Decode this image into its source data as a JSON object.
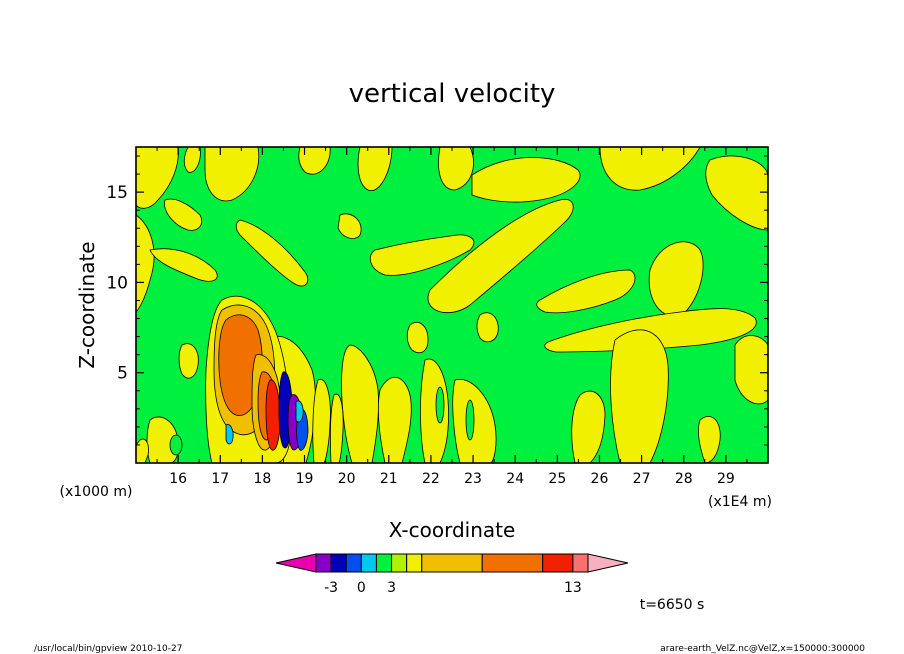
{
  "chart_data": {
    "type": "heatmap",
    "title": "vertical velocity",
    "xlabel": "X-coordinate",
    "ylabel": "Z-coordinate",
    "x_scale_note": "(x1E4 m)",
    "y_scale_note": "(x1000 m)",
    "x_ticks": [
      "16",
      "17",
      "18",
      "19",
      "20",
      "21",
      "22",
      "23",
      "24",
      "25",
      "26",
      "27",
      "28",
      "29"
    ],
    "y_ticks": [
      "5",
      "10",
      "15"
    ],
    "xlim": [
      15.0,
      30.0
    ],
    "ylim": [
      0.0,
      17.5
    ],
    "colorbar": {
      "colors": [
        "#e800b0",
        "#8800c8",
        "#0000b8",
        "#0050f0",
        "#00c8f0",
        "#00f040",
        "#b0f000",
        "#f0f000",
        "#f0c000",
        "#f07000",
        "#f02000",
        "#f87070",
        "#f8b0c0"
      ],
      "tick_labels": [
        "-3",
        "0",
        "3",
        "13"
      ]
    },
    "time_label": "t=6650 s"
  },
  "footer": {
    "left": "/usr/local/bin/gpview  2010-10-27",
    "right": "arare-earth_VelZ.nc@VelZ,x=150000:300000"
  }
}
